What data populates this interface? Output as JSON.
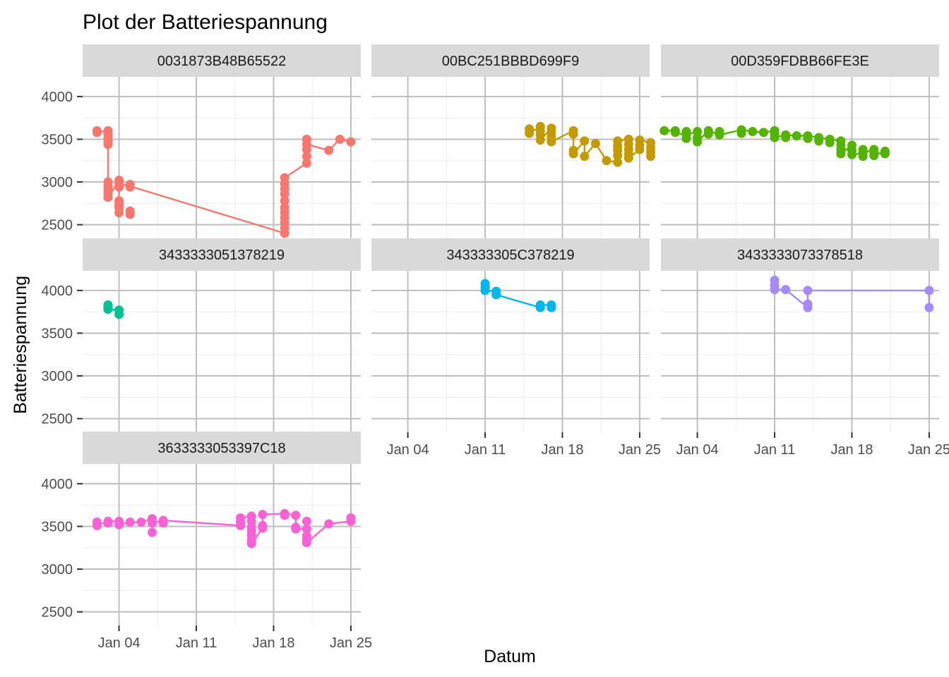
{
  "chart_data": {
    "type": "line",
    "title": "Plot der Batteriespannung",
    "xlabel": "Datum",
    "ylabel": "Batteriespannung",
    "x_unit": "day of January",
    "xlim": [
      0.7,
      25.9
    ],
    "ylim": [
      2340,
      4230
    ],
    "x_ticks": [
      {
        "value": 4,
        "label": "Jan 04"
      },
      {
        "value": 11,
        "label": "Jan 11"
      },
      {
        "value": 18,
        "label": "Jan 18"
      },
      {
        "value": 25,
        "label": "Jan 25"
      }
    ],
    "x_minor_ticks": [
      7.5,
      14.5,
      21.5
    ],
    "y_ticks": [
      {
        "value": 2500,
        "label": "2500"
      },
      {
        "value": 3000,
        "label": "3000"
      },
      {
        "value": 3500,
        "label": "3500"
      },
      {
        "value": 4000,
        "label": "4000"
      }
    ],
    "y_minor_ticks": [
      2750,
      3250,
      3750
    ],
    "grid": true,
    "facets": [
      {
        "name": "0031873B48B65522",
        "color": "#F8766D",
        "points": [
          [
            2,
            3600
          ],
          [
            2,
            3580
          ],
          [
            3,
            3600
          ],
          [
            3,
            3560
          ],
          [
            3,
            3520
          ],
          [
            3,
            3480
          ],
          [
            3,
            3440
          ],
          [
            3,
            3000
          ],
          [
            3,
            2950
          ],
          [
            3,
            2900
          ],
          [
            3,
            2860
          ],
          [
            3,
            2820
          ],
          [
            4,
            3020
          ],
          [
            4,
            2980
          ],
          [
            4,
            2940
          ],
          [
            4,
            2780
          ],
          [
            4,
            2740
          ],
          [
            4,
            2700
          ],
          [
            4,
            2640
          ],
          [
            5,
            2970
          ],
          [
            5,
            2940
          ],
          [
            5,
            2660
          ],
          [
            5,
            2620
          ],
          [
            19,
            2400
          ],
          [
            19,
            2460
          ],
          [
            19,
            2520
          ],
          [
            19,
            2580
          ],
          [
            19,
            2640
          ],
          [
            19,
            2700
          ],
          [
            19,
            2780
          ],
          [
            19,
            2860
          ],
          [
            19,
            2920
          ],
          [
            19,
            2980
          ],
          [
            19,
            3050
          ],
          [
            21,
            3220
          ],
          [
            21,
            3300
          ],
          [
            21,
            3380
          ],
          [
            21,
            3440
          ],
          [
            21,
            3500
          ],
          [
            23,
            3370
          ],
          [
            24,
            3500
          ],
          [
            25,
            3470
          ]
        ],
        "line": [
          [
            2,
            3600
          ],
          [
            2,
            3580
          ],
          [
            3,
            3600
          ],
          [
            3,
            3440
          ],
          [
            3,
            2900
          ],
          [
            3,
            2820
          ],
          [
            4,
            3020
          ],
          [
            4,
            2640
          ],
          [
            4,
            2980
          ],
          [
            5,
            2950
          ],
          [
            19,
            2400
          ],
          [
            19,
            3050
          ],
          [
            21,
            3220
          ],
          [
            21,
            3500
          ],
          [
            21,
            3440
          ],
          [
            23,
            3370
          ],
          [
            24,
            3500
          ],
          [
            25,
            3470
          ]
        ]
      },
      {
        "name": "00BC251BBBD699F9",
        "color": "#C49A00",
        "points": [
          [
            15,
            3620
          ],
          [
            15,
            3570
          ],
          [
            16,
            3650
          ],
          [
            16,
            3600
          ],
          [
            16,
            3550
          ],
          [
            16,
            3490
          ],
          [
            17,
            3630
          ],
          [
            17,
            3580
          ],
          [
            17,
            3530
          ],
          [
            17,
            3470
          ],
          [
            19,
            3600
          ],
          [
            19,
            3560
          ],
          [
            19,
            3370
          ],
          [
            19,
            3330
          ],
          [
            20,
            3480
          ],
          [
            20,
            3300
          ],
          [
            21,
            3450
          ],
          [
            22,
            3250
          ],
          [
            23,
            3480
          ],
          [
            23,
            3420
          ],
          [
            23,
            3370
          ],
          [
            23,
            3310
          ],
          [
            23,
            3230
          ],
          [
            24,
            3500
          ],
          [
            24,
            3440
          ],
          [
            24,
            3380
          ],
          [
            24,
            3330
          ],
          [
            24,
            3280
          ],
          [
            25,
            3490
          ],
          [
            25,
            3430
          ],
          [
            25,
            3380
          ],
          [
            26,
            3460
          ],
          [
            26,
            3400
          ],
          [
            26,
            3350
          ],
          [
            26,
            3300
          ]
        ],
        "line": [
          [
            15,
            3620
          ],
          [
            15,
            3570
          ],
          [
            16,
            3650
          ],
          [
            16,
            3490
          ],
          [
            17,
            3630
          ],
          [
            17,
            3470
          ],
          [
            19,
            3600
          ],
          [
            19,
            3330
          ],
          [
            20,
            3480
          ],
          [
            20,
            3300
          ],
          [
            21,
            3450
          ],
          [
            22,
            3250
          ],
          [
            23,
            3230
          ],
          [
            23,
            3480
          ],
          [
            24,
            3500
          ],
          [
            24,
            3280
          ],
          [
            25,
            3380
          ],
          [
            25,
            3490
          ],
          [
            26,
            3460
          ],
          [
            26,
            3300
          ]
        ]
      },
      {
        "name": "00D359FDBB66FE3E",
        "color": "#53B400",
        "points": [
          [
            1,
            3600
          ],
          [
            2,
            3600
          ],
          [
            2,
            3580
          ],
          [
            3,
            3590
          ],
          [
            3,
            3550
          ],
          [
            3,
            3510
          ],
          [
            4,
            3590
          ],
          [
            4,
            3520
          ],
          [
            4,
            3470
          ],
          [
            5,
            3600
          ],
          [
            5,
            3560
          ],
          [
            6,
            3590
          ],
          [
            6,
            3550
          ],
          [
            8,
            3610
          ],
          [
            8,
            3570
          ],
          [
            9,
            3590
          ],
          [
            10,
            3580
          ],
          [
            11,
            3600
          ],
          [
            11,
            3560
          ],
          [
            11,
            3520
          ],
          [
            12,
            3550
          ],
          [
            12,
            3520
          ],
          [
            13,
            3540
          ],
          [
            14,
            3540
          ],
          [
            14,
            3510
          ],
          [
            15,
            3520
          ],
          [
            15,
            3480
          ],
          [
            16,
            3500
          ],
          [
            16,
            3460
          ],
          [
            17,
            3480
          ],
          [
            17,
            3430
          ],
          [
            17,
            3380
          ],
          [
            17,
            3330
          ],
          [
            18,
            3430
          ],
          [
            18,
            3370
          ],
          [
            18,
            3320
          ],
          [
            19,
            3380
          ],
          [
            19,
            3340
          ],
          [
            19,
            3300
          ],
          [
            20,
            3380
          ],
          [
            20,
            3350
          ],
          [
            20,
            3310
          ],
          [
            21,
            3360
          ],
          [
            21,
            3330
          ]
        ],
        "line": [
          [
            1,
            3600
          ],
          [
            2,
            3600
          ],
          [
            2,
            3580
          ],
          [
            3,
            3550
          ],
          [
            4,
            3590
          ],
          [
            4,
            3470
          ],
          [
            5,
            3600
          ],
          [
            6,
            3550
          ],
          [
            8,
            3610
          ],
          [
            9,
            3590
          ],
          [
            10,
            3580
          ],
          [
            11,
            3600
          ],
          [
            11,
            3520
          ],
          [
            12,
            3550
          ],
          [
            13,
            3540
          ],
          [
            14,
            3540
          ],
          [
            15,
            3520
          ],
          [
            16,
            3500
          ],
          [
            17,
            3480
          ],
          [
            17,
            3330
          ],
          [
            18,
            3430
          ],
          [
            18,
            3320
          ],
          [
            19,
            3340
          ],
          [
            20,
            3380
          ],
          [
            20,
            3310
          ],
          [
            21,
            3360
          ],
          [
            21,
            3330
          ]
        ]
      },
      {
        "name": "3433333051378219",
        "color": "#00C094",
        "points": [
          [
            3,
            3830
          ],
          [
            3,
            3800
          ],
          [
            3,
            3780
          ],
          [
            4,
            3770
          ],
          [
            4,
            3720
          ]
        ],
        "line": [
          [
            3,
            3830
          ],
          [
            3,
            3780
          ],
          [
            4,
            3770
          ],
          [
            4,
            3720
          ]
        ]
      },
      {
        "name": "343333305C378219",
        "color": "#00B6EB",
        "points": [
          [
            11,
            4080
          ],
          [
            11,
            4040
          ],
          [
            11,
            4000
          ],
          [
            12,
            3990
          ],
          [
            12,
            3950
          ],
          [
            16,
            3830
          ],
          [
            16,
            3800
          ],
          [
            17,
            3830
          ],
          [
            17,
            3800
          ]
        ],
        "line": [
          [
            11,
            4080
          ],
          [
            11,
            4000
          ],
          [
            12,
            3990
          ],
          [
            12,
            3950
          ],
          [
            16,
            3800
          ],
          [
            16,
            3830
          ],
          [
            17,
            3830
          ],
          [
            17,
            3800
          ]
        ]
      },
      {
        "name": "3433333073378518",
        "color": "#A58AFF",
        "points": [
          [
            11,
            4120
          ],
          [
            11,
            4060
          ],
          [
            11,
            4010
          ],
          [
            12,
            4010
          ],
          [
            14,
            4000
          ],
          [
            14,
            3840
          ],
          [
            14,
            3800
          ],
          [
            25,
            4000
          ],
          [
            25,
            3800
          ]
        ],
        "line": [
          [
            11,
            4120
          ],
          [
            11,
            4010
          ],
          [
            12,
            4010
          ],
          [
            14,
            3800
          ],
          [
            14,
            4000
          ],
          [
            25,
            4000
          ],
          [
            25,
            3800
          ]
        ]
      },
      {
        "name": "3633333053397C18",
        "color": "#FB61D7",
        "points": [
          [
            2,
            3550
          ],
          [
            2,
            3510
          ],
          [
            3,
            3560
          ],
          [
            3,
            3540
          ],
          [
            4,
            3560
          ],
          [
            4,
            3520
          ],
          [
            5,
            3550
          ],
          [
            6,
            3550
          ],
          [
            7,
            3590
          ],
          [
            7,
            3540
          ],
          [
            7,
            3430
          ],
          [
            8,
            3570
          ],
          [
            8,
            3540
          ],
          [
            15,
            3600
          ],
          [
            15,
            3550
          ],
          [
            15,
            3510
          ],
          [
            16,
            3620
          ],
          [
            16,
            3560
          ],
          [
            16,
            3490
          ],
          [
            16,
            3450
          ],
          [
            16,
            3400
          ],
          [
            16,
            3340
          ],
          [
            16,
            3300
          ],
          [
            17,
            3640
          ],
          [
            17,
            3510
          ],
          [
            17,
            3480
          ],
          [
            19,
            3650
          ],
          [
            19,
            3630
          ],
          [
            20,
            3630
          ],
          [
            20,
            3490
          ],
          [
            20,
            3470
          ],
          [
            21,
            3560
          ],
          [
            21,
            3470
          ],
          [
            21,
            3390
          ],
          [
            21,
            3350
          ],
          [
            21,
            3310
          ],
          [
            23,
            3530
          ],
          [
            25,
            3600
          ],
          [
            25,
            3560
          ]
        ],
        "line": [
          [
            2,
            3550
          ],
          [
            2,
            3510
          ],
          [
            3,
            3560
          ],
          [
            4,
            3560
          ],
          [
            4,
            3520
          ],
          [
            5,
            3550
          ],
          [
            6,
            3550
          ],
          [
            7,
            3590
          ],
          [
            7,
            3430
          ],
          [
            7,
            3540
          ],
          [
            8,
            3570
          ],
          [
            15,
            3510
          ],
          [
            15,
            3600
          ],
          [
            16,
            3620
          ],
          [
            16,
            3300
          ],
          [
            17,
            3480
          ],
          [
            17,
            3640
          ],
          [
            19,
            3650
          ],
          [
            20,
            3630
          ],
          [
            20,
            3470
          ],
          [
            21,
            3470
          ],
          [
            21,
            3560
          ],
          [
            21,
            3310
          ],
          [
            23,
            3530
          ],
          [
            25,
            3560
          ],
          [
            25,
            3600
          ]
        ]
      }
    ]
  }
}
